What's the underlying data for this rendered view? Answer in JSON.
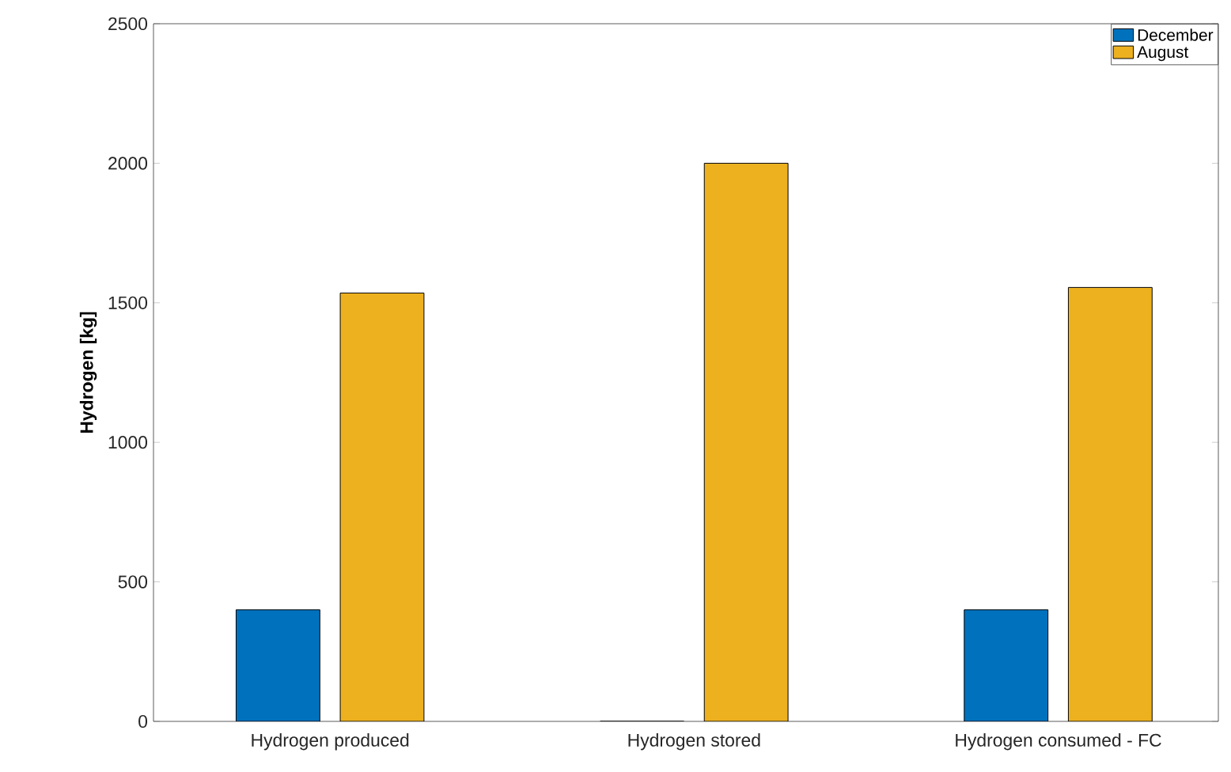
{
  "chart_data": {
    "type": "bar",
    "ylabel": "Hydrogen [kg]",
    "categories": [
      "Hydrogen produced",
      "Hydrogen stored",
      "Hydrogen consumed - FC"
    ],
    "series": [
      {
        "name": "December",
        "color": "#0072bd",
        "values": [
          400,
          0,
          400
        ]
      },
      {
        "name": "August",
        "color": "#edb120",
        "values": [
          1535,
          2000,
          1555
        ]
      }
    ],
    "ylim": [
      0,
      2500
    ],
    "yticks": [
      0,
      500,
      1000,
      1500,
      2000,
      2500
    ],
    "legend": "top right"
  }
}
